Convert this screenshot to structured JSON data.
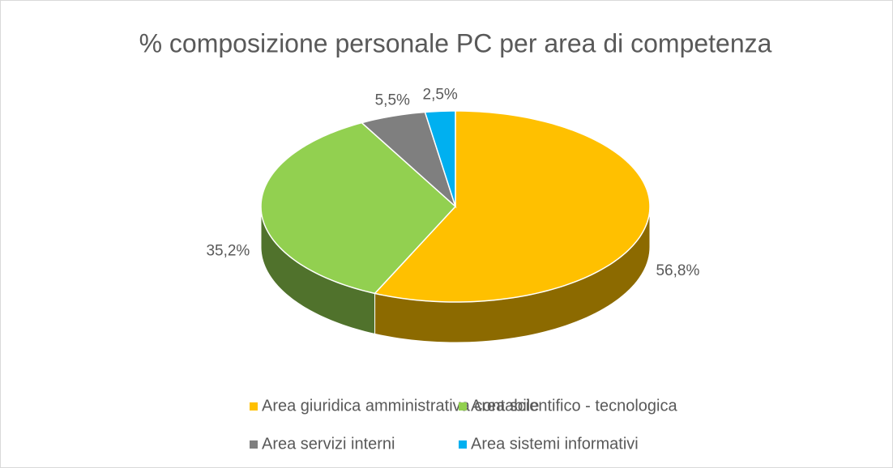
{
  "chart_data": {
    "type": "pie",
    "title": "% composizione personale PC per area di competenza",
    "categories": [
      "Area giuridica amministrativa contabile",
      "Area scientifico - tecnologica",
      "Area servizi interni",
      "Area sistemi informativi"
    ],
    "values": [
      56.8,
      35.2,
      5.5,
      2.5
    ],
    "value_labels": [
      "56,8%",
      "35,2%",
      "5,5%",
      "2,5%"
    ],
    "colors": [
      "#FFC000",
      "#92D050",
      "#7F7F7F",
      "#00B0F0"
    ],
    "legend": "bottom"
  }
}
